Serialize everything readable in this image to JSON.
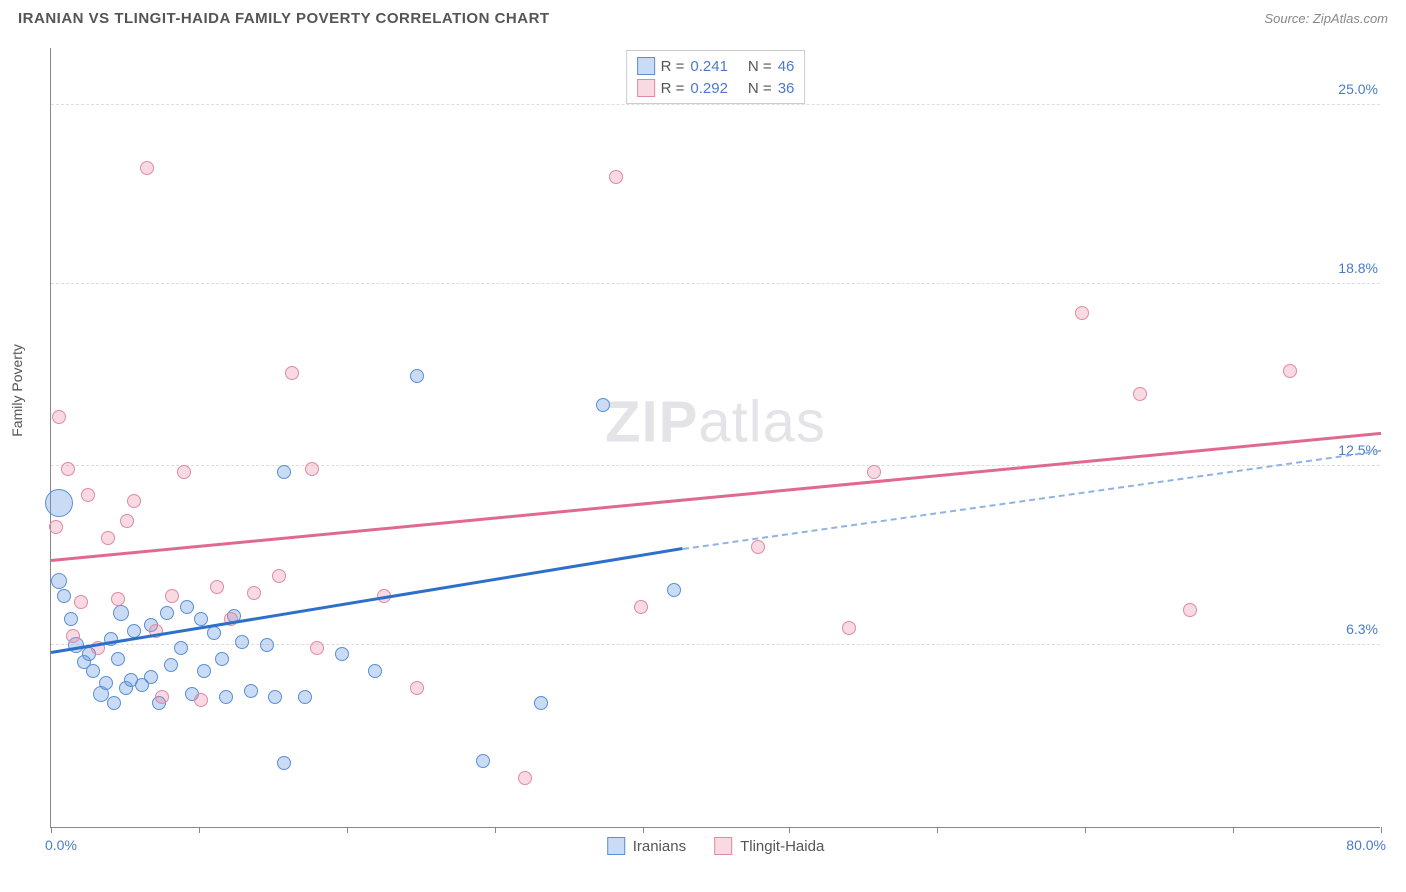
{
  "header": {
    "title": "IRANIAN VS TLINGIT-HAIDA FAMILY POVERTY CORRELATION CHART",
    "source": "Source: ZipAtlas.com"
  },
  "chart": {
    "type": "scatter",
    "ylabel": "Family Poverty",
    "xlim": [
      0,
      80
    ],
    "ylim": [
      0,
      27
    ],
    "xlim_labels": {
      "min": "0.0%",
      "max": "80.0%"
    },
    "yticks": [
      {
        "v": 6.3,
        "label": "6.3%"
      },
      {
        "v": 12.5,
        "label": "12.5%"
      },
      {
        "v": 18.8,
        "label": "18.8%"
      },
      {
        "v": 25.0,
        "label": "25.0%"
      }
    ],
    "xtick_positions": [
      0,
      8.9,
      17.8,
      26.7,
      35.6,
      44.4,
      53.3,
      62.2,
      71.1,
      80
    ],
    "grid_color": "#dddddd",
    "background_color": "#ffffff",
    "watermark": {
      "zip": "ZIP",
      "atlas": "atlas"
    },
    "series": [
      {
        "name": "Iranians",
        "fill": "rgba(99,151,225,0.35)",
        "stroke": "#5a8fd6",
        "line_color": "#2e6fc9",
        "dash_color": "#8fb4e3",
        "r_label": "R =",
        "r_value": "0.241",
        "n_label": "N =",
        "n_value": "46",
        "trend": {
          "x1": 0,
          "y1": 6.0,
          "x2": 38,
          "y2": 9.6,
          "x2_dash": 80,
          "y2_dash": 13.0
        },
        "points": [
          {
            "x": 0.5,
            "y": 11.2,
            "r": 14
          },
          {
            "x": 0.5,
            "y": 8.5,
            "r": 8
          },
          {
            "x": 0.8,
            "y": 8.0,
            "r": 7
          },
          {
            "x": 1.2,
            "y": 7.2,
            "r": 7
          },
          {
            "x": 1.5,
            "y": 6.3,
            "r": 8
          },
          {
            "x": 2.0,
            "y": 5.7,
            "r": 7
          },
          {
            "x": 2.3,
            "y": 6.0,
            "r": 7
          },
          {
            "x": 2.5,
            "y": 5.4,
            "r": 7
          },
          {
            "x": 3.0,
            "y": 4.6,
            "r": 8
          },
          {
            "x": 3.3,
            "y": 5.0,
            "r": 7
          },
          {
            "x": 3.6,
            "y": 6.5,
            "r": 7
          },
          {
            "x": 3.8,
            "y": 4.3,
            "r": 7
          },
          {
            "x": 4.0,
            "y": 5.8,
            "r": 7
          },
          {
            "x": 4.2,
            "y": 7.4,
            "r": 8
          },
          {
            "x": 4.5,
            "y": 4.8,
            "r": 7
          },
          {
            "x": 4.8,
            "y": 5.1,
            "r": 7
          },
          {
            "x": 5.0,
            "y": 6.8,
            "r": 7
          },
          {
            "x": 5.5,
            "y": 4.9,
            "r": 7
          },
          {
            "x": 6.0,
            "y": 5.2,
            "r": 7
          },
          {
            "x": 6.0,
            "y": 7.0,
            "r": 7
          },
          {
            "x": 6.5,
            "y": 4.3,
            "r": 7
          },
          {
            "x": 7.0,
            "y": 7.4,
            "r": 7
          },
          {
            "x": 7.2,
            "y": 5.6,
            "r": 7
          },
          {
            "x": 7.8,
            "y": 6.2,
            "r": 7
          },
          {
            "x": 8.2,
            "y": 7.6,
            "r": 7
          },
          {
            "x": 8.5,
            "y": 4.6,
            "r": 7
          },
          {
            "x": 9.0,
            "y": 7.2,
            "r": 7
          },
          {
            "x": 9.2,
            "y": 5.4,
            "r": 7
          },
          {
            "x": 9.8,
            "y": 6.7,
            "r": 7
          },
          {
            "x": 10.3,
            "y": 5.8,
            "r": 7
          },
          {
            "x": 10.5,
            "y": 4.5,
            "r": 7
          },
          {
            "x": 11.0,
            "y": 7.3,
            "r": 7
          },
          {
            "x": 11.5,
            "y": 6.4,
            "r": 7
          },
          {
            "x": 12.0,
            "y": 4.7,
            "r": 7
          },
          {
            "x": 13.0,
            "y": 6.3,
            "r": 7
          },
          {
            "x": 13.5,
            "y": 4.5,
            "r": 7
          },
          {
            "x": 14.0,
            "y": 12.3,
            "r": 7
          },
          {
            "x": 14.0,
            "y": 2.2,
            "r": 7
          },
          {
            "x": 15.3,
            "y": 4.5,
            "r": 7
          },
          {
            "x": 17.5,
            "y": 6.0,
            "r": 7
          },
          {
            "x": 19.5,
            "y": 5.4,
            "r": 7
          },
          {
            "x": 22.0,
            "y": 15.6,
            "r": 7
          },
          {
            "x": 26.0,
            "y": 2.3,
            "r": 7
          },
          {
            "x": 29.5,
            "y": 4.3,
            "r": 7
          },
          {
            "x": 33.2,
            "y": 14.6,
            "r": 7
          },
          {
            "x": 37.5,
            "y": 8.2,
            "r": 7
          }
        ]
      },
      {
        "name": "Tlingit-Haida",
        "fill": "rgba(235,130,160,0.30)",
        "stroke": "#e08aa6",
        "line_color": "#e06a8e",
        "r_label": "R =",
        "r_value": "0.292",
        "n_label": "N =",
        "n_value": "36",
        "trend": {
          "x1": 0,
          "y1": 9.2,
          "x2": 80,
          "y2": 13.6
        },
        "points": [
          {
            "x": 0.3,
            "y": 10.4,
            "r": 7
          },
          {
            "x": 0.5,
            "y": 14.2,
            "r": 7
          },
          {
            "x": 1.0,
            "y": 12.4,
            "r": 7
          },
          {
            "x": 1.3,
            "y": 6.6,
            "r": 7
          },
          {
            "x": 1.8,
            "y": 7.8,
            "r": 7
          },
          {
            "x": 2.2,
            "y": 11.5,
            "r": 7
          },
          {
            "x": 2.8,
            "y": 6.2,
            "r": 7
          },
          {
            "x": 3.4,
            "y": 10.0,
            "r": 7
          },
          {
            "x": 4.0,
            "y": 7.9,
            "r": 7
          },
          {
            "x": 4.6,
            "y": 10.6,
            "r": 7
          },
          {
            "x": 5.0,
            "y": 11.3,
            "r": 7
          },
          {
            "x": 5.8,
            "y": 22.8,
            "r": 7
          },
          {
            "x": 6.3,
            "y": 6.8,
            "r": 7
          },
          {
            "x": 6.7,
            "y": 4.5,
            "r": 7
          },
          {
            "x": 7.3,
            "y": 8.0,
            "r": 7
          },
          {
            "x": 8.0,
            "y": 12.3,
            "r": 7
          },
          {
            "x": 9.0,
            "y": 4.4,
            "r": 7
          },
          {
            "x": 10.0,
            "y": 8.3,
            "r": 7
          },
          {
            "x": 10.8,
            "y": 7.2,
            "r": 7
          },
          {
            "x": 12.2,
            "y": 8.1,
            "r": 7
          },
          {
            "x": 13.7,
            "y": 8.7,
            "r": 7
          },
          {
            "x": 14.5,
            "y": 15.7,
            "r": 7
          },
          {
            "x": 15.7,
            "y": 12.4,
            "r": 7
          },
          {
            "x": 20.0,
            "y": 8.0,
            "r": 7
          },
          {
            "x": 28.5,
            "y": 1.7,
            "r": 7
          },
          {
            "x": 34.0,
            "y": 22.5,
            "r": 7
          },
          {
            "x": 35.5,
            "y": 7.6,
            "r": 7
          },
          {
            "x": 42.5,
            "y": 9.7,
            "r": 7
          },
          {
            "x": 48.0,
            "y": 6.9,
            "r": 7
          },
          {
            "x": 49.5,
            "y": 12.3,
            "r": 7
          },
          {
            "x": 62.0,
            "y": 17.8,
            "r": 7
          },
          {
            "x": 65.5,
            "y": 15.0,
            "r": 7
          },
          {
            "x": 68.5,
            "y": 7.5,
            "r": 7
          },
          {
            "x": 74.5,
            "y": 15.8,
            "r": 7
          },
          {
            "x": 22.0,
            "y": 4.8,
            "r": 7
          },
          {
            "x": 16.0,
            "y": 6.2,
            "r": 7
          }
        ]
      }
    ]
  }
}
